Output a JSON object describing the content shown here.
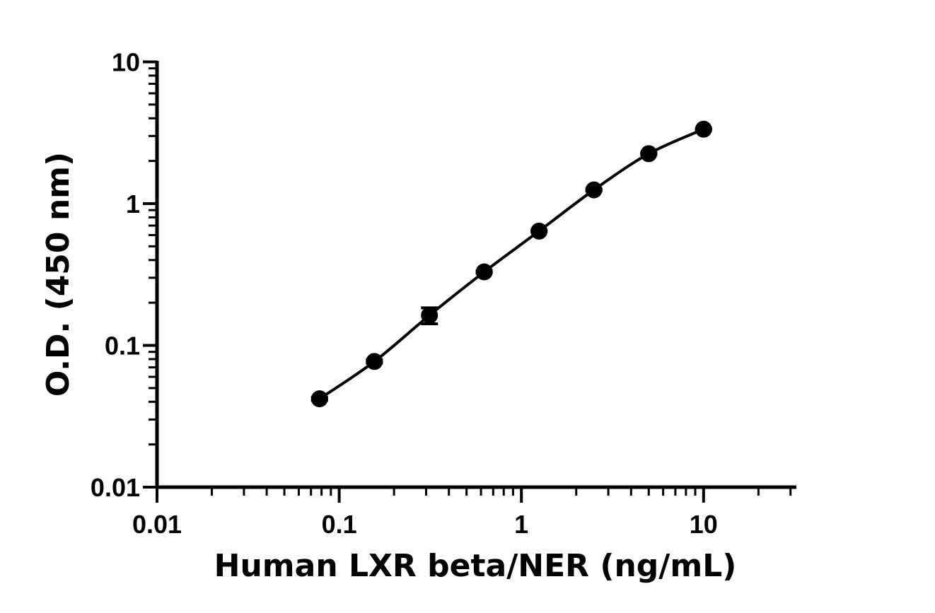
{
  "chart_data": {
    "type": "scatter",
    "title": "",
    "xlabel": "Human LXR beta/NER (ng/mL)",
    "ylabel": "O.D. (450 nm)",
    "x_scale": "log",
    "y_scale": "log",
    "xlim": [
      0.01,
      30
    ],
    "ylim": [
      0.01,
      10
    ],
    "x_ticks": [
      {
        "value": 0.01,
        "label": "0.01"
      },
      {
        "value": 0.1,
        "label": "0.1"
      },
      {
        "value": 1,
        "label": "1"
      },
      {
        "value": 10,
        "label": "10"
      }
    ],
    "y_ticks": [
      {
        "value": 0.01,
        "label": "0.01"
      },
      {
        "value": 0.1,
        "label": "0.1"
      },
      {
        "value": 1,
        "label": "1"
      },
      {
        "value": 10,
        "label": "10"
      }
    ],
    "grid": false,
    "legend": "none",
    "series": [
      {
        "x": [
          0.078,
          0.156,
          0.313,
          0.625,
          1.25,
          2.5,
          5,
          10
        ],
        "y": [
          0.042,
          0.077,
          0.163,
          0.33,
          0.64,
          1.25,
          2.25,
          3.35
        ],
        "y_error": [
          0.001,
          0.002,
          0.021,
          0.005,
          0.01,
          0.02,
          0.03,
          0.04
        ],
        "fit_curve": true
      }
    ],
    "colors": {
      "marker": "#000000",
      "line": "#000000",
      "axis": "#000000"
    }
  }
}
